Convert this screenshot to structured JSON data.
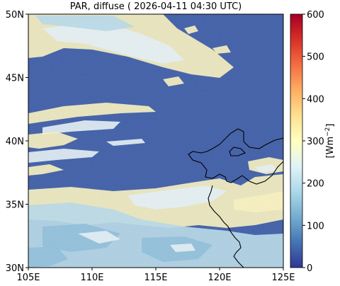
{
  "title": "PAR, diffuse ( 2026-04-11 04:30 UTC)",
  "map": {
    "lon_range": [
      105,
      125
    ],
    "lat_range": [
      30,
      50
    ],
    "x_ticks": [
      {
        "value": 105,
        "label": "105E"
      },
      {
        "value": 110,
        "label": "110E"
      },
      {
        "value": 115,
        "label": "115E"
      },
      {
        "value": 120,
        "label": "120E"
      },
      {
        "value": 125,
        "label": "125E"
      }
    ],
    "y_ticks": [
      {
        "value": 30,
        "label": "30N"
      },
      {
        "value": 35,
        "label": "35N"
      },
      {
        "value": 40,
        "label": "40N"
      },
      {
        "value": 45,
        "label": "45N"
      },
      {
        "value": 50,
        "label": "50N"
      }
    ],
    "background_value_color": "#3c5ca8",
    "cloud_colors": [
      "#fbf3c0",
      "#fde9a5",
      "#e6f2f7",
      "#b9dbea",
      "#8fbfdc"
    ]
  },
  "colorbar": {
    "range": [
      0,
      600
    ],
    "ticks": [
      {
        "value": 0,
        "label": "0"
      },
      {
        "value": 100,
        "label": "100"
      },
      {
        "value": 200,
        "label": "200"
      },
      {
        "value": 300,
        "label": "300"
      },
      {
        "value": 400,
        "label": "400"
      },
      {
        "value": 500,
        "label": "500"
      },
      {
        "value": 600,
        "label": "600"
      }
    ],
    "unit_label": "[Wm",
    "unit_exponent": "−2",
    "unit_close": "]",
    "colormap": [
      "#313695",
      "#4575b4",
      "#74add1",
      "#abd9e9",
      "#e0f3f8",
      "#ffffbf",
      "#fee090",
      "#fdae61",
      "#f46d43",
      "#d73027",
      "#a50026"
    ]
  }
}
